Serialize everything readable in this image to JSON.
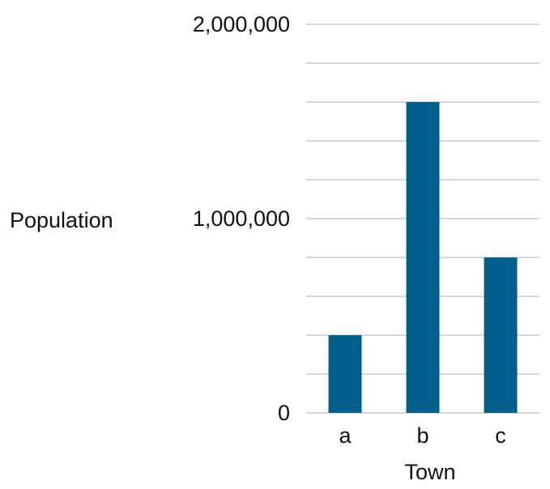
{
  "chart_data": {
    "type": "bar",
    "title": "",
    "xlabel": "Town",
    "ylabel": "Population",
    "categories": [
      "a",
      "b",
      "c"
    ],
    "series": [
      {
        "values": [
          400000,
          1600000,
          800000
        ]
      }
    ],
    "ylim": [
      0,
      2000000
    ],
    "y_tick_labels": [
      "0",
      "1,000,000",
      "2,000,000"
    ],
    "y_tick_values": [
      0,
      1000000,
      2000000
    ],
    "gridline_step": 200000,
    "grid": true,
    "legend": "none",
    "bar_color": "#005f8c"
  }
}
